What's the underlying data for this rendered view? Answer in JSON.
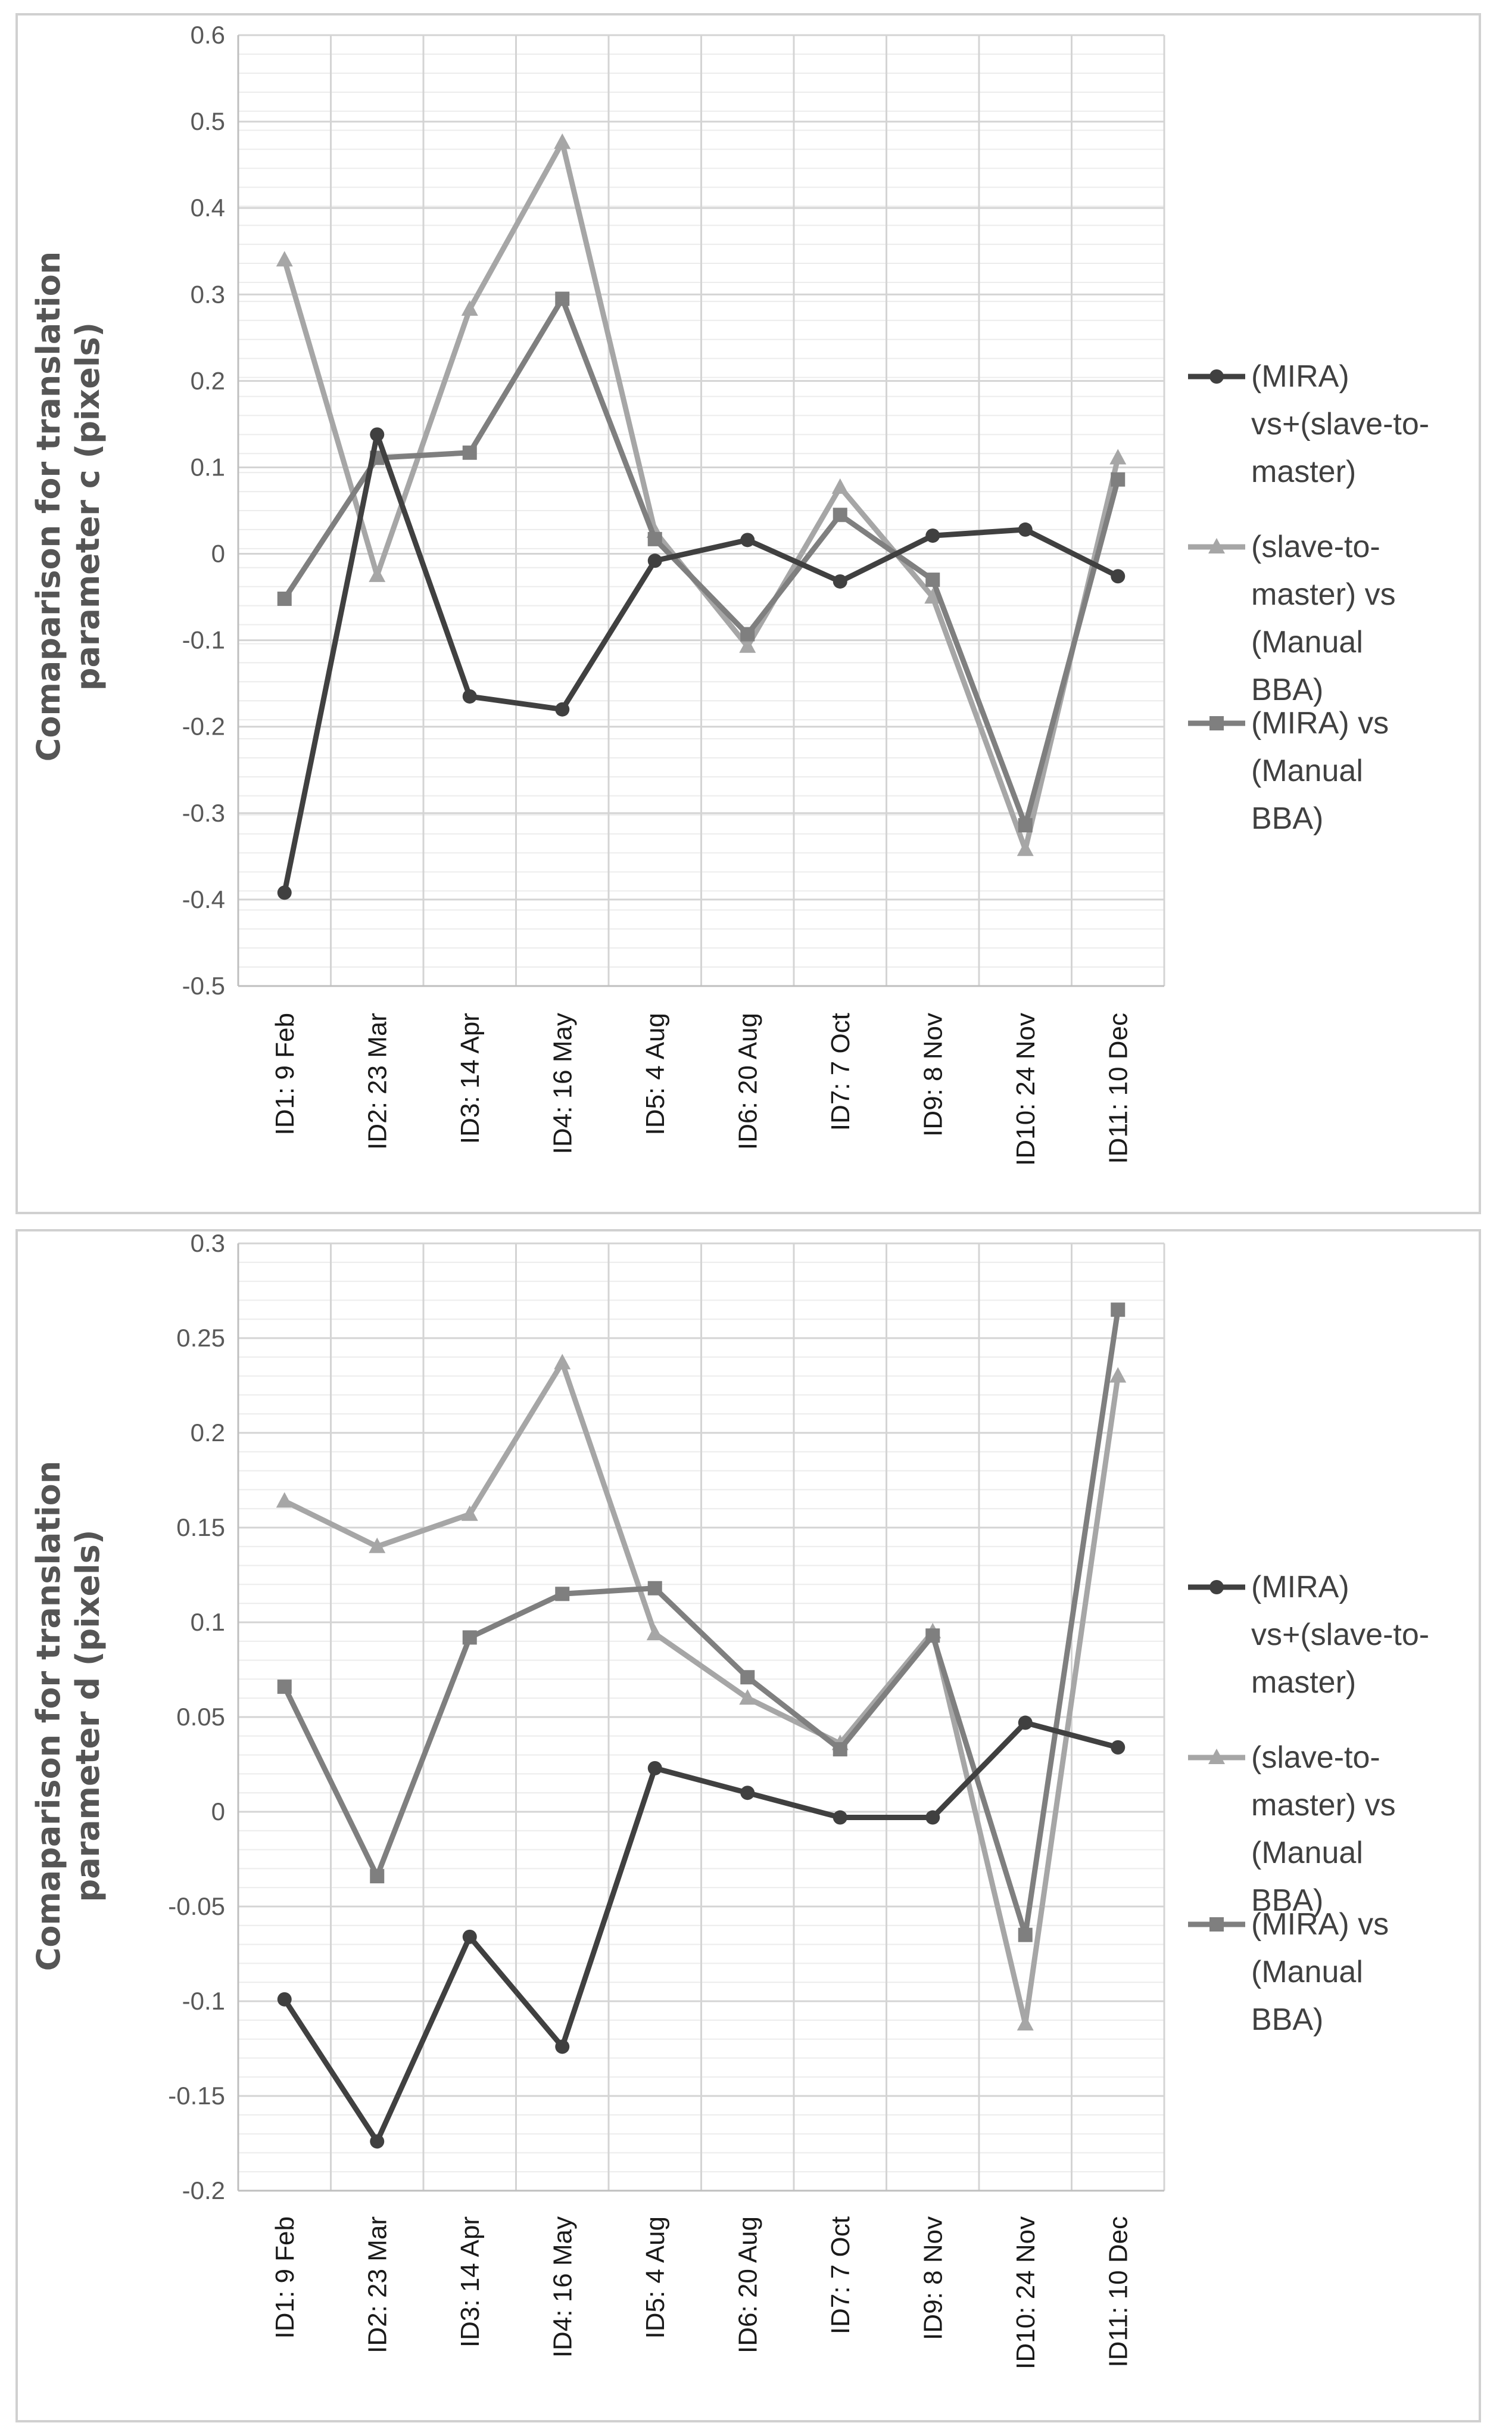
{
  "chart_data": [
    {
      "type": "line",
      "ylabel": "Comaparison for translation parameter c (pixels)",
      "xlabel": "",
      "title": "",
      "ylim": [
        -0.5,
        0.6
      ],
      "yticks": [
        0.6,
        0.5,
        0.4,
        0.3,
        0.2,
        0.1,
        0,
        -0.1,
        -0.2,
        -0.3,
        -0.4,
        -0.5
      ],
      "categories": [
        "ID1: 9 Feb",
        "ID2: 23 Mar",
        "ID3: 14 Apr",
        "ID4: 16 May",
        "ID5: 4 Aug",
        "ID6: 20 Aug",
        "ID7: 7 Oct",
        "ID9: 8 Nov",
        "ID10: 24 Nov",
        "ID11: 10 Dec"
      ],
      "legend_position": "right",
      "series": [
        {
          "name": "(MIRA) vs+(slave-to-master)",
          "legend_lines": [
            "(MIRA)",
            "vs+(slave-to-",
            "master)"
          ],
          "marker": "circle",
          "color": "#404040",
          "values": [
            -0.392,
            0.138,
            -0.165,
            -0.18,
            -0.008,
            0.016,
            -0.032,
            0.021,
            0.028,
            -0.026
          ]
        },
        {
          "name": "(slave-to-master) vs (Manual BBA)",
          "legend_lines": [
            "(slave-to-",
            "master) vs",
            "(Manual",
            "BBA)"
          ],
          "marker": "triangle",
          "color": "#a6a6a6",
          "values": [
            0.34,
            -0.025,
            0.283,
            0.476,
            0.026,
            -0.107,
            0.077,
            -0.05,
            -0.342,
            0.111
          ]
        },
        {
          "name": "(MIRA) vs (Manual BBA)",
          "legend_lines": [
            "(MIRA) vs",
            "(Manual",
            "BBA)"
          ],
          "marker": "square",
          "color": "#7f7f7f",
          "values": [
            -0.052,
            0.111,
            0.117,
            0.295,
            0.017,
            -0.093,
            0.045,
            -0.03,
            -0.314,
            0.086
          ]
        }
      ]
    },
    {
      "type": "line",
      "ylabel": "Comaparison for translation parameter d (pixels)",
      "xlabel": "",
      "title": "",
      "ylim": [
        -0.2,
        0.3
      ],
      "yticks": [
        0.3,
        0.25,
        0.2,
        0.15,
        0.1,
        0.05,
        0,
        -0.05,
        -0.1,
        -0.15,
        -0.2
      ],
      "categories": [
        "ID1: 9 Feb",
        "ID2: 23 Mar",
        "ID3: 14 Apr",
        "ID4: 16 May",
        "ID5: 4 Aug",
        "ID6: 20 Aug",
        "ID7: 7 Oct",
        "ID9: 8 Nov",
        "ID10: 24 Nov",
        "ID11: 10 Dec"
      ],
      "legend_position": "right",
      "series": [
        {
          "name": "(MIRA) vs+(slave-to-master)",
          "legend_lines": [
            "(MIRA)",
            "vs+(slave-to-",
            "master)"
          ],
          "marker": "circle",
          "color": "#404040",
          "values": [
            -0.099,
            -0.174,
            -0.066,
            -0.124,
            0.023,
            0.01,
            -0.003,
            -0.003,
            0.047,
            0.034
          ]
        },
        {
          "name": "(slave-to-master) vs (Manual BBA)",
          "legend_lines": [
            "(slave-to-",
            "master) vs",
            "(Manual",
            "BBA)"
          ],
          "marker": "triangle",
          "color": "#a6a6a6",
          "values": [
            0.164,
            0.14,
            0.157,
            0.237,
            0.094,
            0.06,
            0.036,
            0.095,
            -0.112,
            0.23
          ]
        },
        {
          "name": "(MIRA) vs (Manual BBA)",
          "legend_lines": [
            "(MIRA) vs",
            "(Manual",
            "BBA)"
          ],
          "marker": "square",
          "color": "#7f7f7f",
          "values": [
            0.066,
            -0.034,
            0.092,
            0.115,
            0.118,
            0.071,
            0.033,
            0.093,
            -0.065,
            0.265
          ]
        }
      ]
    }
  ]
}
